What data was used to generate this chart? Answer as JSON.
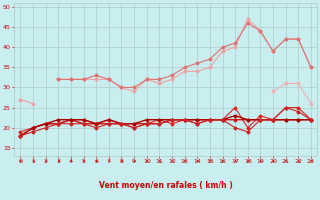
{
  "xlabel": "Vent moyen/en rafales ( km/h )",
  "x": [
    0,
    1,
    2,
    3,
    4,
    5,
    6,
    7,
    8,
    9,
    10,
    11,
    12,
    13,
    14,
    15,
    16,
    17,
    18,
    19,
    20,
    21,
    22,
    23
  ],
  "series": [
    {
      "name": "light_upper_trend",
      "color": "#f0a0a0",
      "lw": 0.8,
      "marker": "D",
      "ms": 1.5,
      "y": [
        27,
        26,
        null,
        null,
        null,
        null,
        null,
        null,
        null,
        null,
        null,
        null,
        null,
        null,
        null,
        null,
        null,
        null,
        null,
        null,
        null,
        null,
        null,
        null
      ]
    },
    {
      "name": "light_upper_main",
      "color": "#f0a0a0",
      "lw": 0.8,
      "marker": "D",
      "ms": 1.5,
      "y": [
        null,
        null,
        null,
        32,
        32,
        32,
        32,
        32,
        30,
        29,
        32,
        31,
        32,
        34,
        34,
        35,
        39,
        40,
        47,
        44,
        39,
        42,
        42,
        35
      ]
    },
    {
      "name": "medium_pink_upper",
      "color": "#e07070",
      "lw": 0.8,
      "marker": "D",
      "ms": 1.5,
      "y": [
        null,
        null,
        null,
        32,
        32,
        32,
        33,
        32,
        30,
        30,
        32,
        32,
        33,
        35,
        36,
        37,
        40,
        41,
        46,
        44,
        39,
        42,
        42,
        35
      ]
    },
    {
      "name": "light_diagonal_low",
      "color": "#f0b0b0",
      "lw": 0.8,
      "marker": "D",
      "ms": 1.5,
      "y": [
        null,
        null,
        null,
        null,
        null,
        null,
        null,
        null,
        null,
        null,
        null,
        null,
        null,
        null,
        null,
        null,
        null,
        null,
        null,
        null,
        29,
        31,
        31,
        26
      ]
    },
    {
      "name": "dark_red_volatile",
      "color": "#dd2222",
      "lw": 0.8,
      "marker": "D",
      "ms": 1.5,
      "y": [
        19,
        20,
        21,
        21,
        22,
        22,
        21,
        22,
        21,
        20,
        21,
        22,
        21,
        22,
        21,
        22,
        22,
        25,
        20,
        23,
        22,
        25,
        25,
        22
      ]
    },
    {
      "name": "dark_red_flat",
      "color": "#cc1111",
      "lw": 1.0,
      "marker": "D",
      "ms": 1.5,
      "y": [
        18,
        20,
        21,
        21,
        22,
        21,
        21,
        21,
        21,
        21,
        21,
        21,
        22,
        22,
        22,
        22,
        22,
        22,
        22,
        22,
        22,
        22,
        22,
        22
      ]
    },
    {
      "name": "dark_red_flat2",
      "color": "#aa0000",
      "lw": 1.0,
      "marker": "D",
      "ms": 1.5,
      "y": [
        18,
        20,
        21,
        22,
        22,
        22,
        21,
        22,
        21,
        21,
        22,
        22,
        22,
        22,
        22,
        22,
        22,
        23,
        22,
        22,
        22,
        22,
        22,
        22
      ]
    },
    {
      "name": "dark_lower",
      "color": "#cc2222",
      "lw": 0.8,
      "marker": "D",
      "ms": 1.5,
      "y": [
        18,
        19,
        20,
        21,
        21,
        21,
        20,
        21,
        21,
        20,
        21,
        21,
        22,
        22,
        21,
        22,
        22,
        20,
        19,
        22,
        22,
        25,
        24,
        22
      ]
    }
  ],
  "ylim": [
    13,
    51
  ],
  "yticks": [
    15,
    20,
    25,
    30,
    35,
    40,
    45,
    50
  ],
  "xticks": [
    0,
    1,
    2,
    3,
    4,
    5,
    6,
    7,
    8,
    9,
    10,
    11,
    12,
    13,
    14,
    15,
    16,
    17,
    18,
    19,
    20,
    21,
    22,
    23
  ],
  "bg_color": "#c8eef0",
  "grid_color": "#b0c8c8",
  "tick_color": "#cc0000",
  "label_color": "#cc0000"
}
